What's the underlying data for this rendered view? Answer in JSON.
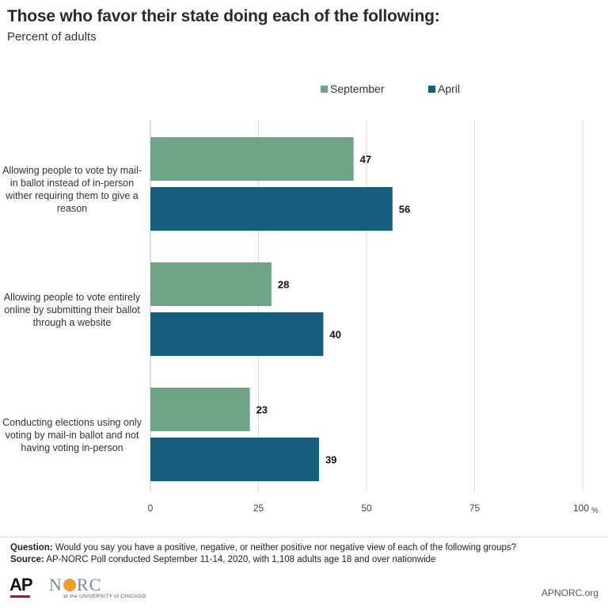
{
  "header": {
    "title": "Those who favor their state doing each of the following:",
    "subtitle": "Percent of adults"
  },
  "colors": {
    "september": "#6fa487",
    "april": "#175d7c",
    "grid": "#d9d9d9"
  },
  "chart_data": {
    "type": "bar",
    "orientation": "horizontal",
    "title": "Those who favor their state doing each of the following:",
    "subtitle": "Percent of adults",
    "categories": [
      "Allowing people to vote by mail-in ballot instead of in-person wither requiring them to give a reason",
      "Allowing people to vote entirely online by submitting their ballot through a website",
      "Conducting elections using only voting by mail-in ballot and not having voting in-person"
    ],
    "series": [
      {
        "name": "September",
        "values": [
          47,
          28,
          23
        ]
      },
      {
        "name": "April",
        "values": [
          56,
          40,
          39
        ]
      }
    ],
    "xlim": [
      0,
      100
    ],
    "ticks": [
      "0",
      "25",
      "50",
      "75",
      "100"
    ],
    "tick_values": [
      0,
      25,
      50,
      75,
      100
    ],
    "unit": "%",
    "grid": true,
    "legend": "top-right"
  },
  "labels": {
    "cat0": "Allowing people to vote by mail-in ballot instead of in-person wither requiring them to give a reason",
    "cat1": "Allowing people to vote entirely online by submitting their ballot through a website",
    "cat2": "Conducting elections using only voting by mail-in ballot and not having voting in-person"
  },
  "legend": {
    "september": "September",
    "april": "April"
  },
  "footer": {
    "question_label": "Question:",
    "question_text": " Would you say you have a positive, negative, or neither positive nor negative view of each of the following groups?",
    "source_label": "Source:",
    "source_text": " AP-NORC Poll conducted September 11-14, 2020, with 1,108 adults age 18 and over nationwide",
    "ap_logo": "AP",
    "norc_n": "N",
    "norc_rc": "RC",
    "norc_sub": "at the UNIVERSITY of CHICAGO",
    "url": "APNORC.org"
  }
}
